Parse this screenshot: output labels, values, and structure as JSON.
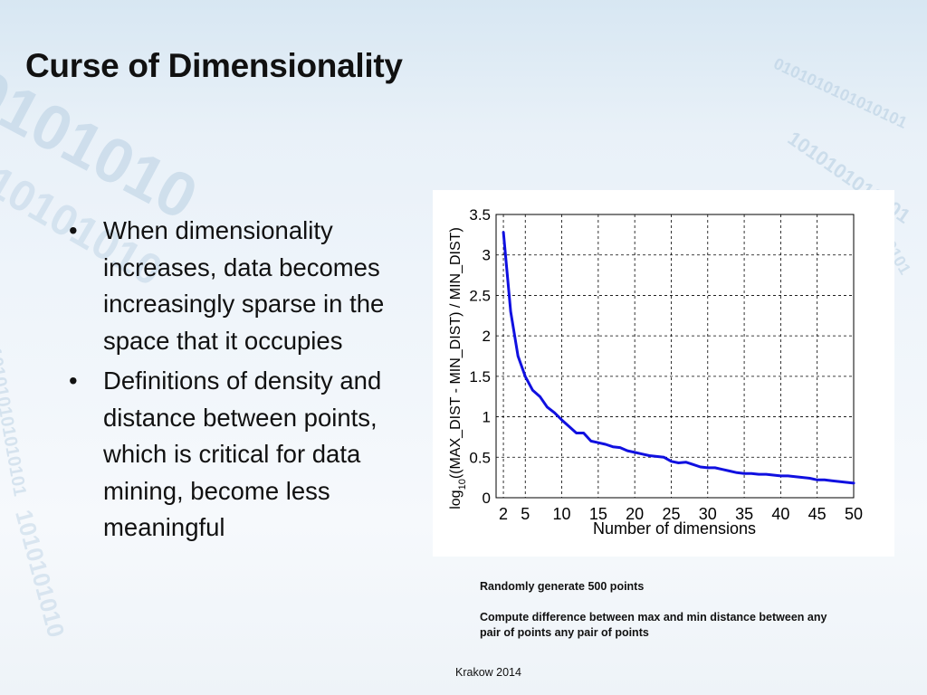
{
  "slide": {
    "title": "Curse of Dimensionality",
    "bullets": [
      "When dimensionality increases, data becomes increasingly sparse in the space that it occupies",
      "Definitions of density and distance between points, which is critical for data mining, become less meaningful"
    ],
    "caption": {
      "line1": "Randomly generate 500 points",
      "line2": "Compute difference between max and min distance between any pair of points any pair of points"
    },
    "footer": "Krakow 2014"
  },
  "chart_data": {
    "type": "line",
    "title": "",
    "xlabel": "Number of dimensions",
    "ylabel": "log10((MAX_DIST - MIN_DIST) / MIN_DIST)",
    "xlim": [
      1,
      50
    ],
    "ylim": [
      0,
      3.5
    ],
    "xticks": [
      2,
      5,
      10,
      15,
      20,
      25,
      30,
      35,
      40,
      45,
      50
    ],
    "yticks": [
      0,
      0.5,
      1,
      1.5,
      2,
      2.5,
      3,
      3.5
    ],
    "grid": true,
    "line_color": "#1010e0",
    "x": [
      2,
      3,
      4,
      5,
      6,
      7,
      8,
      9,
      10,
      11,
      12,
      13,
      14,
      15,
      16,
      17,
      18,
      19,
      20,
      21,
      22,
      23,
      24,
      25,
      26,
      27,
      28,
      29,
      30,
      31,
      32,
      33,
      34,
      35,
      36,
      37,
      38,
      39,
      40,
      41,
      42,
      43,
      44,
      45,
      46,
      47,
      48,
      49,
      50
    ],
    "y": [
      3.28,
      2.3,
      1.75,
      1.5,
      1.33,
      1.25,
      1.12,
      1.05,
      0.96,
      0.88,
      0.8,
      0.8,
      0.7,
      0.68,
      0.66,
      0.63,
      0.62,
      0.58,
      0.56,
      0.54,
      0.52,
      0.51,
      0.5,
      0.45,
      0.43,
      0.44,
      0.41,
      0.38,
      0.37,
      0.37,
      0.35,
      0.33,
      0.31,
      0.3,
      0.3,
      0.29,
      0.29,
      0.28,
      0.27,
      0.27,
      0.26,
      0.25,
      0.24,
      0.22,
      0.22,
      0.21,
      0.2,
      0.19,
      0.18
    ]
  }
}
